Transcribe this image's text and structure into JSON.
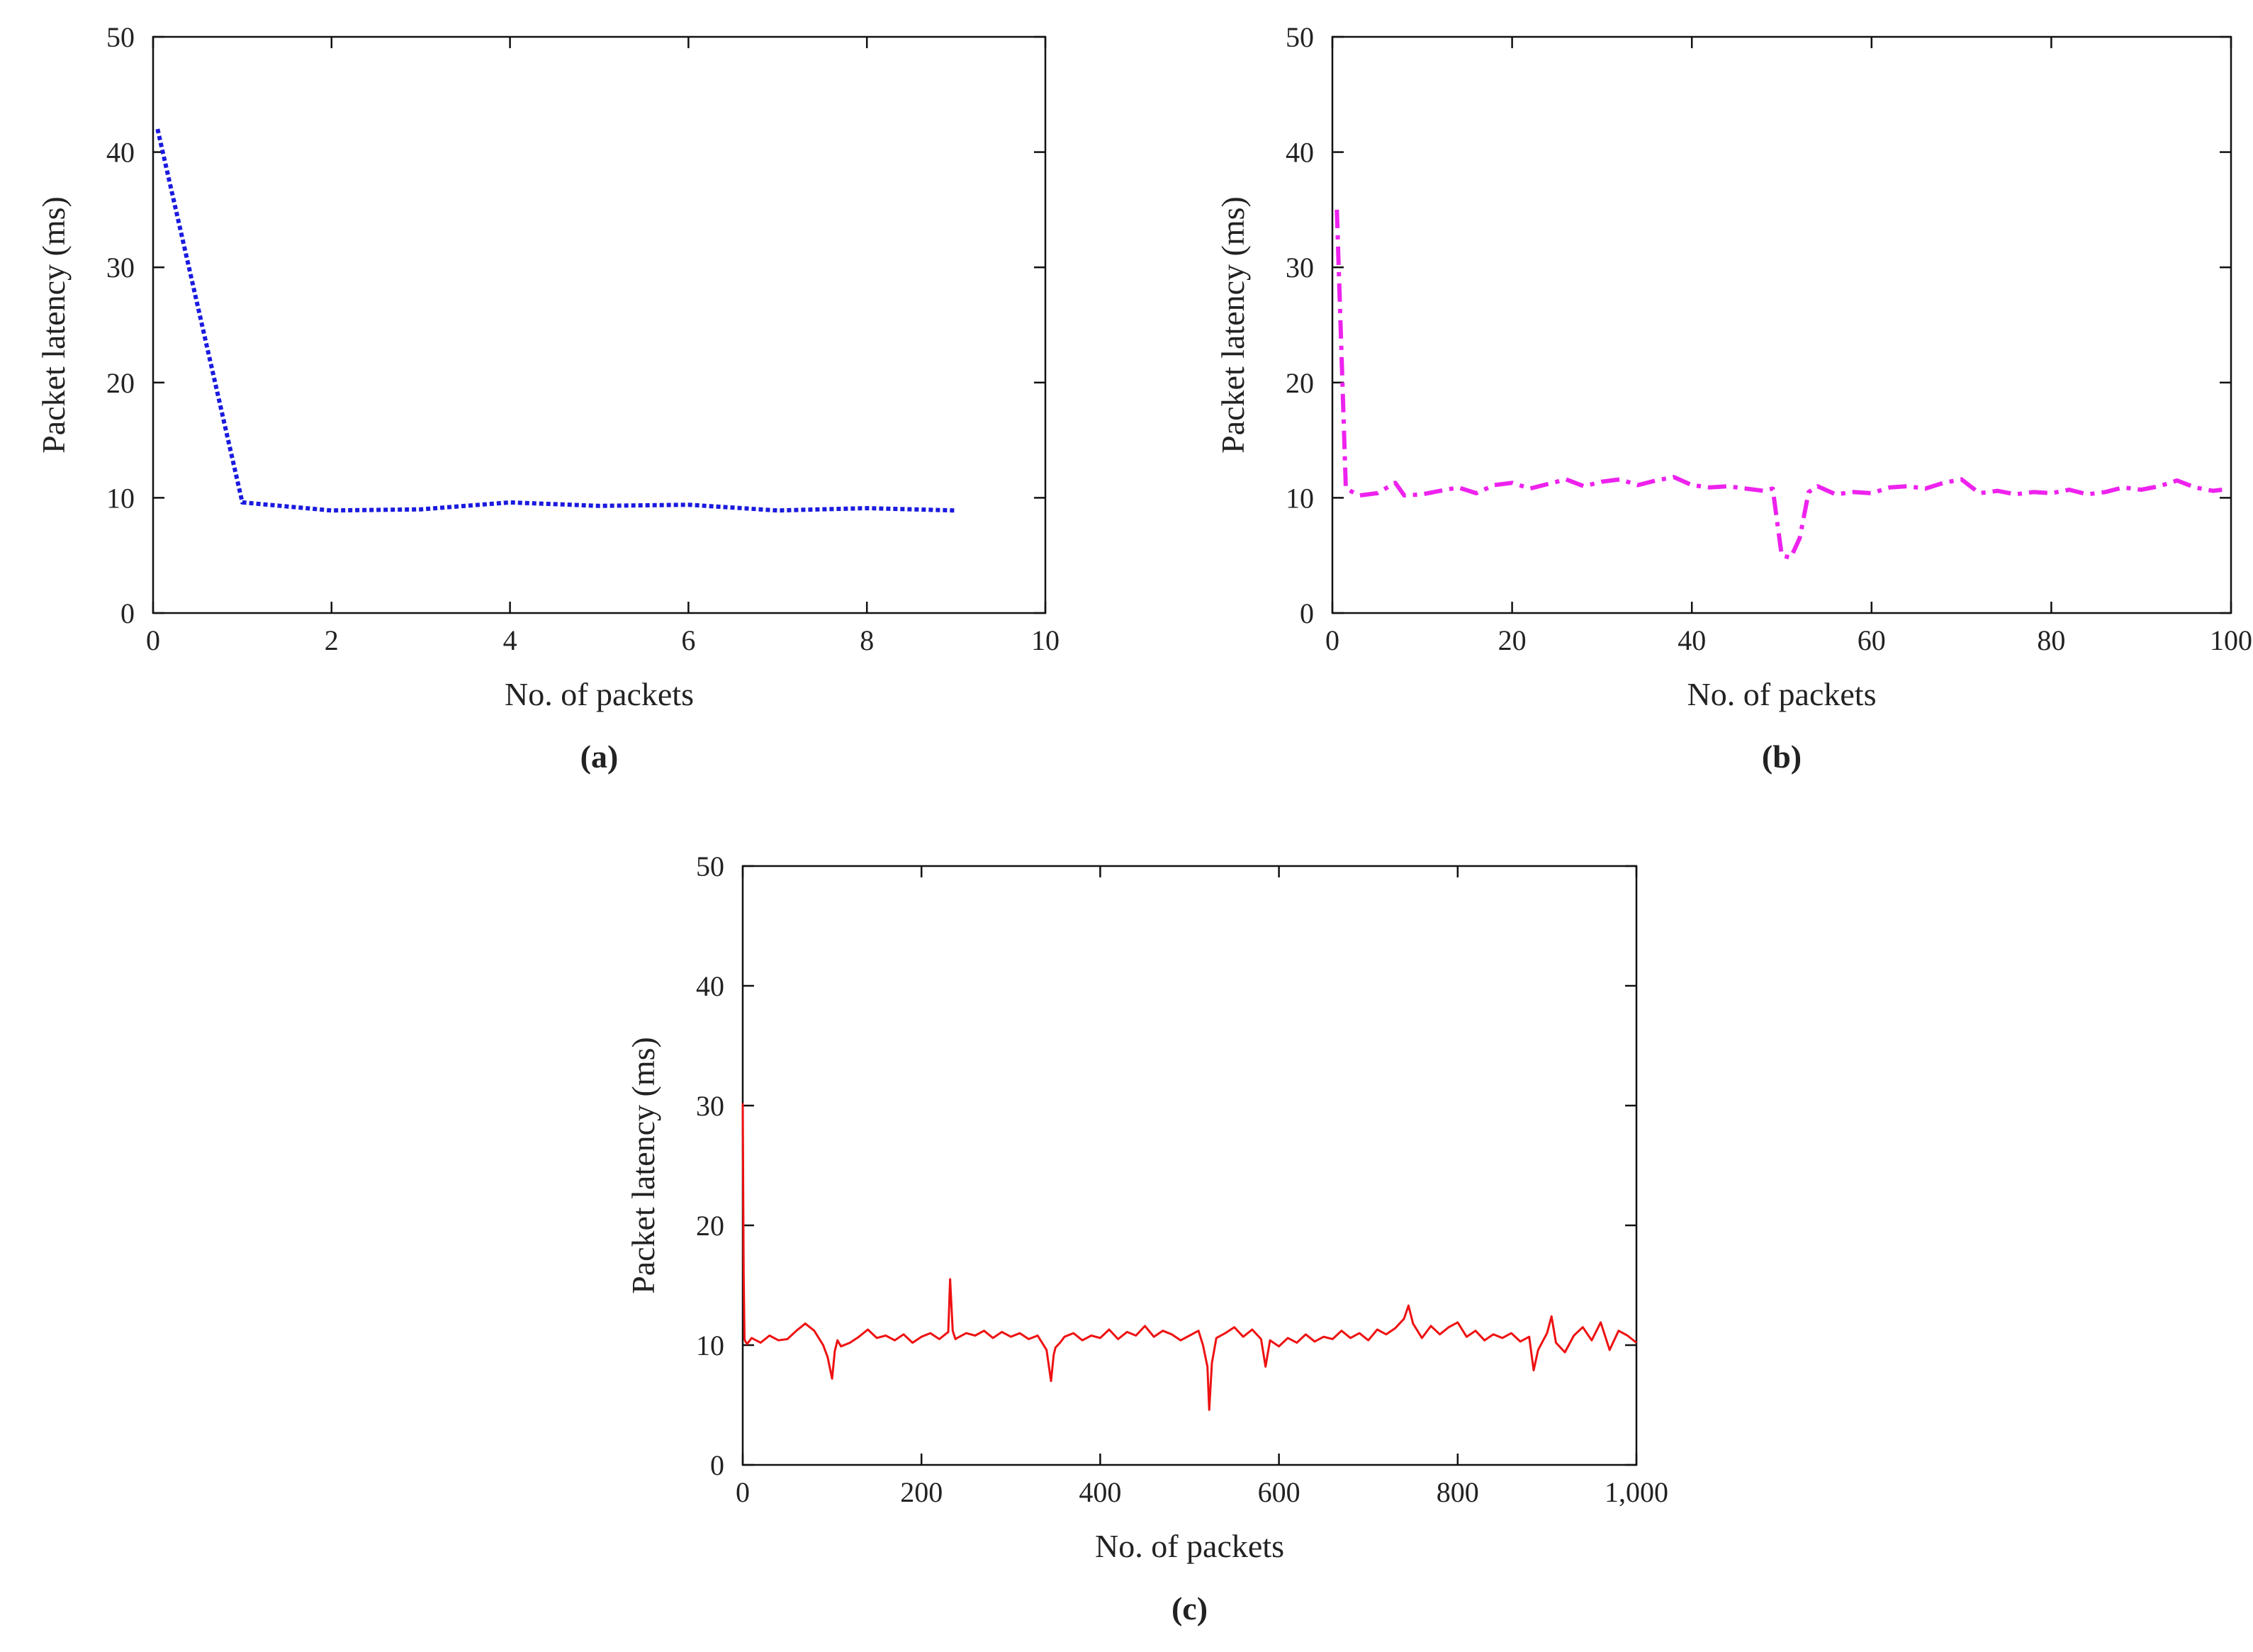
{
  "chart_data": [
    {
      "type": "line",
      "panel_label": "(a)",
      "xlabel": "No. of packets",
      "ylabel": "Packet latency (ms)",
      "xlim": [
        0,
        10
      ],
      "ylim": [
        0,
        50
      ],
      "xticks": [
        "0",
        "2",
        "4",
        "6",
        "8",
        "10"
      ],
      "yticks": [
        "0",
        "10",
        "20",
        "30",
        "40",
        "50"
      ],
      "color": "#1a1adf",
      "line_style": "dotted",
      "grid": false,
      "series": [
        {
          "x": [
            0.05,
            1,
            2,
            3,
            4,
            5,
            6,
            7,
            8,
            9
          ],
          "y": [
            42,
            9.6,
            8.9,
            9.0,
            9.6,
            9.3,
            9.4,
            8.9,
            9.1,
            8.9
          ]
        }
      ]
    },
    {
      "type": "line",
      "panel_label": "(b)",
      "xlabel": "No. of packets",
      "ylabel": "Packet latency (ms)",
      "xlim": [
        0,
        100
      ],
      "ylim": [
        0,
        50
      ],
      "xticks": [
        "0",
        "20",
        "40",
        "60",
        "80",
        "100"
      ],
      "yticks": [
        "0",
        "10",
        "20",
        "30",
        "40",
        "50"
      ],
      "color": "#ee22ee",
      "line_style": "dash-dot",
      "grid": false,
      "series": [
        {
          "x": [
            0.5,
            1.5,
            3,
            5,
            7,
            8,
            10,
            12,
            14,
            16,
            18,
            20,
            22,
            24,
            26,
            28,
            30,
            32,
            34,
            36,
            38,
            40,
            42,
            44,
            46,
            48,
            49,
            50,
            51,
            52,
            53,
            54,
            56,
            58,
            60,
            62,
            64,
            66,
            68,
            70,
            72,
            74,
            76,
            78,
            80,
            82,
            84,
            86,
            88,
            90,
            92,
            94,
            96,
            98,
            99
          ],
          "y": [
            35,
            10.8,
            10.2,
            10.4,
            11.3,
            10.2,
            10.3,
            10.6,
            10.9,
            10.4,
            11.1,
            11.3,
            10.8,
            11.2,
            11.6,
            11.0,
            11.4,
            11.6,
            11.1,
            11.5,
            11.8,
            11.1,
            10.9,
            11.0,
            10.8,
            10.6,
            10.8,
            5.0,
            4.8,
            6.5,
            10.5,
            11.0,
            10.3,
            10.5,
            10.4,
            10.9,
            11.0,
            10.8,
            11.3,
            11.6,
            10.4,
            10.6,
            10.3,
            10.5,
            10.4,
            10.7,
            10.3,
            10.5,
            10.9,
            10.7,
            11.0,
            11.5,
            10.9,
            10.6,
            10.7
          ]
        }
      ]
    },
    {
      "type": "line",
      "panel_label": "(c)",
      "xlabel": "No. of packets",
      "ylabel": "Packet latency (ms)",
      "xlim": [
        0,
        1000
      ],
      "ylim": [
        0,
        50
      ],
      "xticks": [
        "0",
        "200",
        "400",
        "600",
        "800",
        "1,000"
      ],
      "yticks": [
        "0",
        "10",
        "20",
        "30",
        "40",
        "50"
      ],
      "color": "#ee1111",
      "line_style": "solid",
      "grid": false,
      "series": [
        {
          "x": [
            0,
            1,
            2,
            3,
            5,
            10,
            20,
            30,
            40,
            50,
            60,
            70,
            80,
            90,
            95,
            100,
            103,
            106,
            110,
            120,
            130,
            140,
            150,
            160,
            170,
            180,
            190,
            200,
            210,
            220,
            230,
            232,
            235,
            238,
            240,
            250,
            260,
            270,
            280,
            290,
            300,
            310,
            320,
            330,
            340,
            345,
            348,
            350,
            355,
            360,
            370,
            380,
            390,
            400,
            410,
            420,
            430,
            440,
            450,
            460,
            470,
            480,
            490,
            500,
            510,
            515,
            520,
            522,
            525,
            530,
            540,
            550,
            560,
            570,
            580,
            585,
            590,
            600,
            610,
            620,
            630,
            640,
            650,
            660,
            670,
            680,
            690,
            700,
            710,
            720,
            730,
            740,
            745,
            750,
            760,
            770,
            780,
            790,
            800,
            810,
            820,
            830,
            840,
            850,
            860,
            870,
            880,
            885,
            890,
            900,
            905,
            910,
            920,
            930,
            940,
            950,
            960,
            970,
            980,
            990,
            1000
          ],
          "y": [
            30.2,
            16,
            10.5,
            10.3,
            10.1,
            10.6,
            10.2,
            10.8,
            10.4,
            10.5,
            11.2,
            11.8,
            11.2,
            10.0,
            9.0,
            7.2,
            9.5,
            10.4,
            9.9,
            10.2,
            10.7,
            11.3,
            10.6,
            10.8,
            10.4,
            10.9,
            10.2,
            10.7,
            11.0,
            10.5,
            11.1,
            15.5,
            11.2,
            10.5,
            10.6,
            11.0,
            10.8,
            11.2,
            10.6,
            11.1,
            10.7,
            11.0,
            10.5,
            10.8,
            9.6,
            7.0,
            9.2,
            9.8,
            10.2,
            10.7,
            11.0,
            10.4,
            10.8,
            10.6,
            11.3,
            10.5,
            11.1,
            10.8,
            11.6,
            10.7,
            11.2,
            10.9,
            10.4,
            10.8,
            11.2,
            10.0,
            8.2,
            4.6,
            8.5,
            10.6,
            11.0,
            11.5,
            10.7,
            11.3,
            10.5,
            8.2,
            10.4,
            9.9,
            10.6,
            10.2,
            10.9,
            10.3,
            10.7,
            10.5,
            11.2,
            10.6,
            11.0,
            10.4,
            11.3,
            10.9,
            11.4,
            12.2,
            13.3,
            11.8,
            10.6,
            11.6,
            10.9,
            11.5,
            11.9,
            10.7,
            11.2,
            10.4,
            10.9,
            10.6,
            11.0,
            10.3,
            10.7,
            7.9,
            9.6,
            11.0,
            12.4,
            10.2,
            9.4,
            10.8,
            11.5,
            10.4,
            11.9,
            9.6,
            11.2,
            10.8,
            10.2
          ]
        }
      ]
    }
  ]
}
